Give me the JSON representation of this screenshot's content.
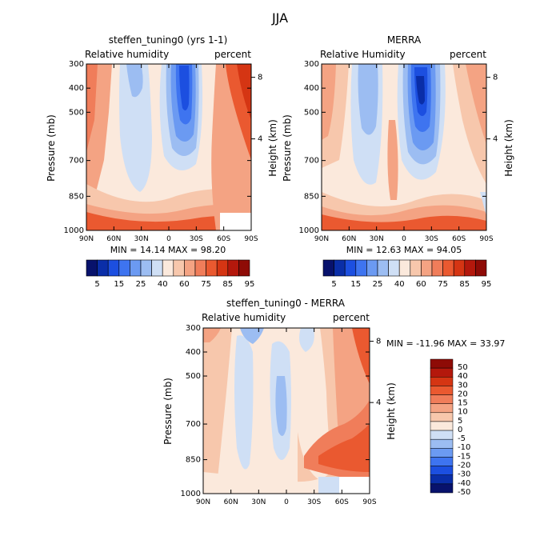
{
  "figure": {
    "season_title": "JJA"
  },
  "colors": {
    "rh_levels": [
      "#08126c",
      "#0a2ea8",
      "#1c4fe0",
      "#3e74f0",
      "#6b9af2",
      "#9cbdf2",
      "#cfdff5",
      "#fbe9dc",
      "#f7c7ac",
      "#f4a383",
      "#f07d5a",
      "#ea5930",
      "#d53513",
      "#b4180c",
      "#8e0b06"
    ],
    "diff_levels": [
      "#08126c",
      "#0a2ea8",
      "#1c4fe0",
      "#3e74f0",
      "#6b9af2",
      "#9cbdf2",
      "#cfdff5",
      "#fbe9dc",
      "#f7c7ac",
      "#f4a383",
      "#f07d5a",
      "#ea5930",
      "#d53513",
      "#b4180c",
      "#8e0b06"
    ]
  },
  "chart_data": [
    {
      "type": "heatmap",
      "title": "steffen_tuning0 (yrs 1-1)",
      "left_label": "Relative humidity",
      "right_label": "percent",
      "ylabel": "Pressure (mb)",
      "ylabel_right": "Height (km)",
      "x_ticks": [
        "90N",
        "60N",
        "30N",
        "0",
        "30S",
        "60S",
        "90S"
      ],
      "y_ticks": [
        "300",
        "400",
        "500",
        "700",
        "850",
        "1000"
      ],
      "height_ticks": [
        "8",
        "4"
      ],
      "stats": "MIN =  14.14  MAX =  98.20",
      "colorbar_labels": [
        "5",
        "15",
        "25",
        "40",
        "60",
        "75",
        "85",
        "95"
      ],
      "min": 14.14,
      "max": 98.2
    },
    {
      "type": "heatmap",
      "title": "MERRA",
      "left_label": "Relative Humidity",
      "right_label": "percent",
      "ylabel": "Pressure (mb)",
      "ylabel_right": "Height (km)",
      "x_ticks": [
        "90N",
        "60N",
        "30N",
        "0",
        "30S",
        "60S",
        "90S"
      ],
      "y_ticks": [
        "300",
        "400",
        "500",
        "700",
        "850",
        "1000"
      ],
      "height_ticks": [
        "8",
        "4"
      ],
      "stats": "MIN =  12.63  MAX =  94.05",
      "colorbar_labels": [
        "5",
        "15",
        "25",
        "40",
        "60",
        "75",
        "85",
        "95"
      ],
      "min": 12.63,
      "max": 94.05
    },
    {
      "type": "heatmap",
      "title": "steffen_tuning0 - MERRA",
      "left_label": "Relative humidity",
      "right_label": "percent",
      "ylabel": "Pressure (mb)",
      "ylabel_right": "Height (km)",
      "x_ticks": [
        "90N",
        "60N",
        "30N",
        "0",
        "30S",
        "60S",
        "90S"
      ],
      "y_ticks": [
        "300",
        "400",
        "500",
        "700",
        "850",
        "1000"
      ],
      "height_ticks": [
        "8",
        "4"
      ],
      "stats": "MIN = -11.96   MAX =  33.97",
      "colorbar_labels": [
        "50",
        "40",
        "30",
        "20",
        "15",
        "10",
        "5",
        "0",
        "-5",
        "-10",
        "-15",
        "-20",
        "-30",
        "-40",
        "-50"
      ],
      "min": -11.96,
      "max": 33.97
    }
  ]
}
